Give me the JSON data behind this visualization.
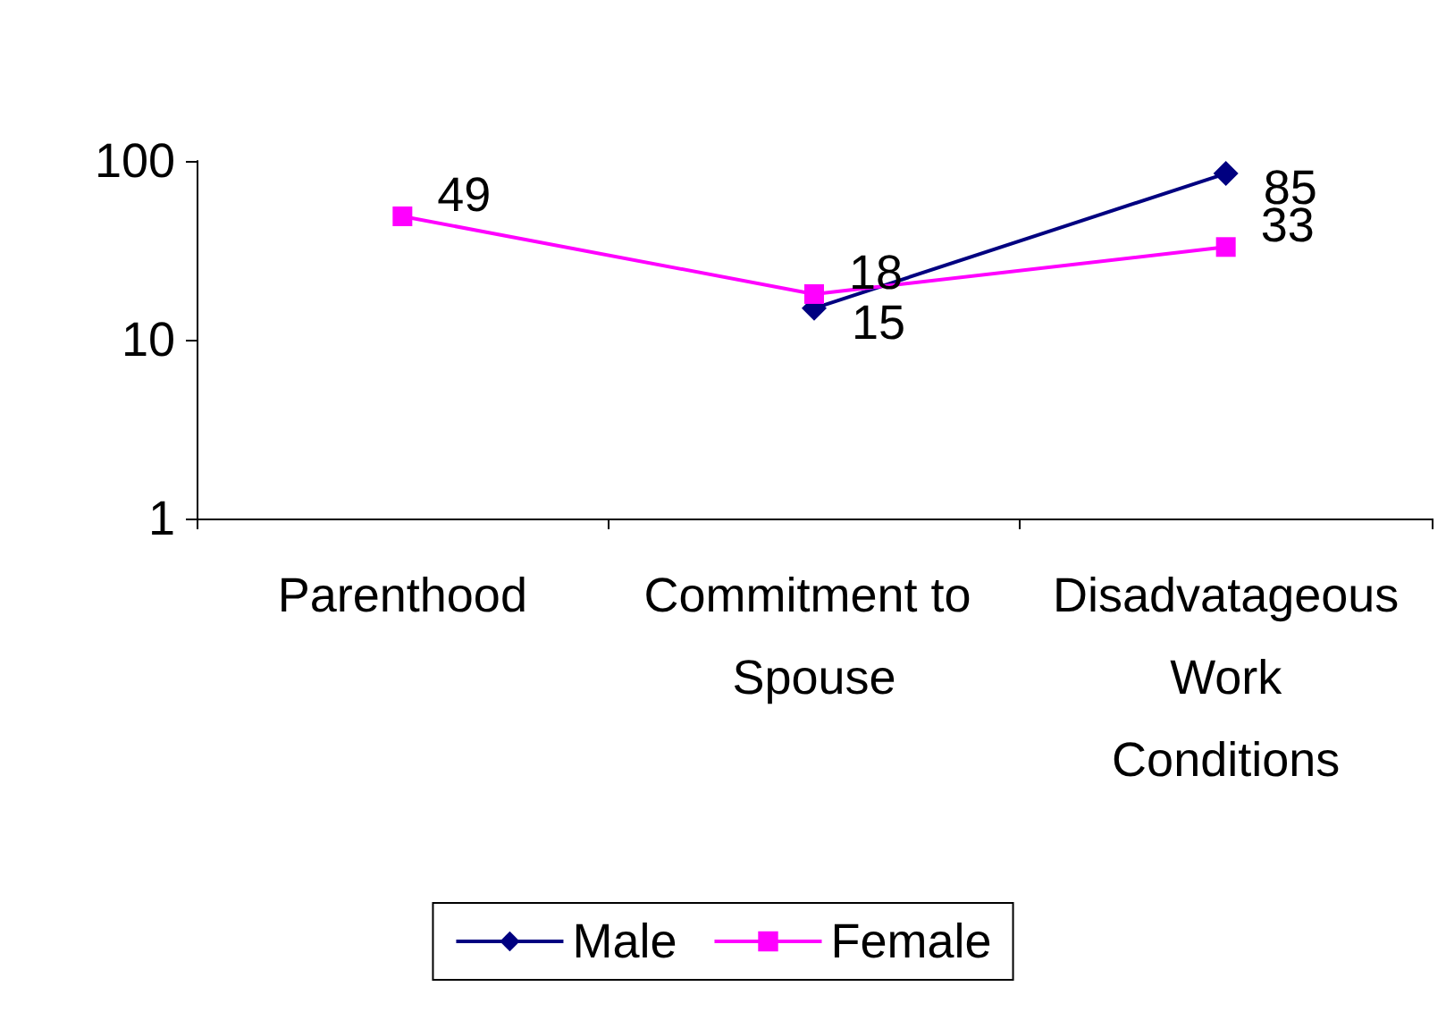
{
  "chart_data": {
    "type": "line",
    "categories": [
      "Parenthood",
      "Commitment to Spouse",
      "Disadvatageous Work Conditions"
    ],
    "series": [
      {
        "name": "Male",
        "color": "#000080",
        "marker": "diamond",
        "values": [
          null,
          15,
          85
        ]
      },
      {
        "name": "Female",
        "color": "#ff00ff",
        "marker": "square",
        "values": [
          49,
          18,
          33
        ]
      }
    ],
    "log": "y",
    "ylim": [
      1,
      100
    ],
    "yticks": [
      1,
      10,
      100
    ],
    "data_labels": true,
    "legend": "bottom",
    "grid": false
  }
}
